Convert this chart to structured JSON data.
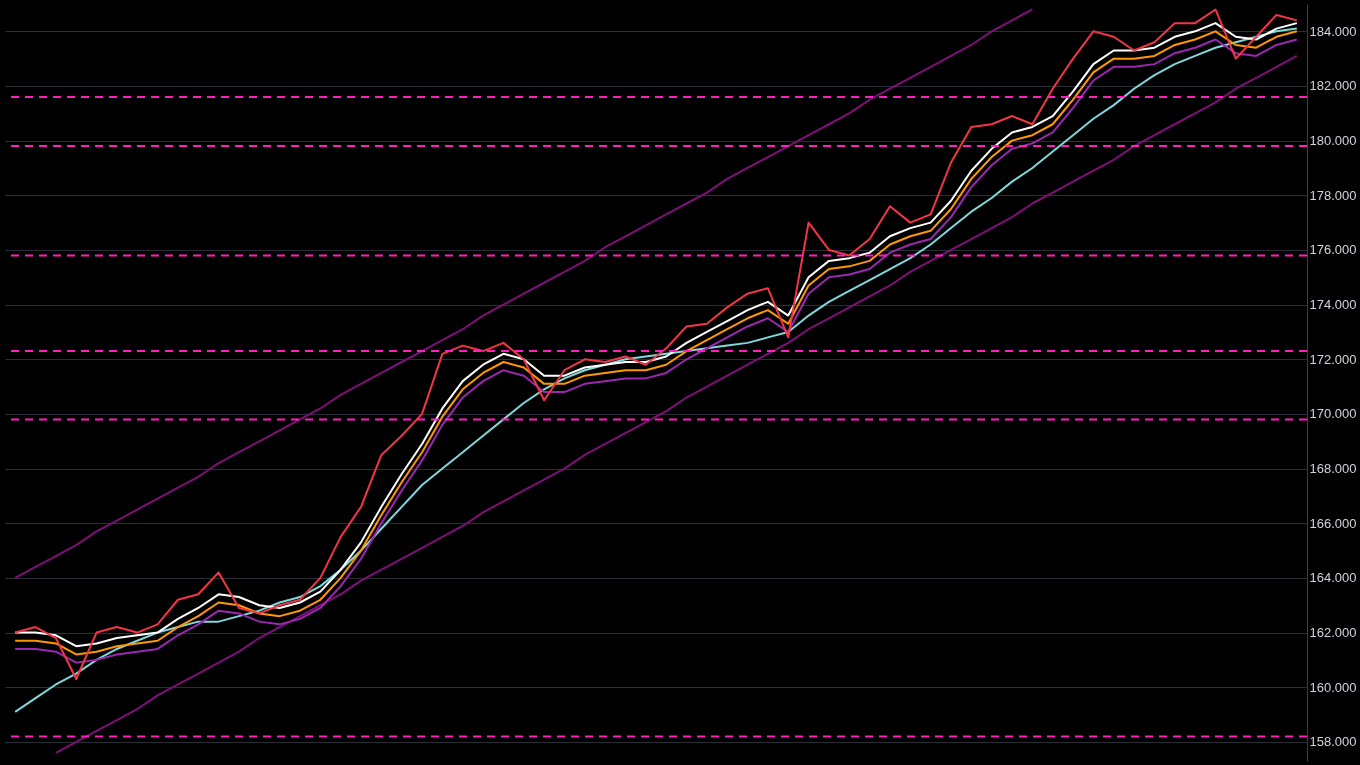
{
  "chart_data": {
    "type": "line",
    "categories": [
      null,
      null,
      null,
      null,
      null,
      null,
      null,
      null,
      null,
      null,
      null,
      null,
      null,
      null,
      null,
      null,
      null,
      null,
      null,
      null,
      null,
      null,
      null,
      null,
      null,
      null,
      null,
      null,
      null,
      null,
      null,
      null,
      null,
      null,
      null,
      null,
      null,
      null,
      null,
      null,
      null,
      null,
      null,
      null,
      null,
      null,
      null,
      null,
      null,
      null,
      null,
      null,
      null,
      null,
      null,
      null,
      null,
      null,
      null,
      null,
      null,
      null,
      null,
      null
    ],
    "series": [
      {
        "color": "#800f7a",
        "values": [
          164.0,
          164.4,
          164.8,
          165.2,
          165.7,
          166.1,
          166.5,
          166.9,
          167.3,
          167.7,
          168.2,
          168.6,
          169.0,
          169.4,
          169.8,
          170.2,
          170.7,
          171.1,
          171.5,
          171.9,
          172.3,
          172.7,
          173.1,
          173.6,
          174.0,
          174.4,
          174.8,
          175.2,
          175.6,
          176.1,
          176.5,
          176.9,
          177.3,
          177.7,
          178.1,
          178.6,
          179.0,
          179.4,
          179.8,
          180.2,
          180.6,
          181.0,
          181.5,
          181.9,
          182.3,
          182.7,
          183.1,
          183.5,
          184.0,
          184.4,
          184.8,
          null,
          null,
          null,
          null,
          null,
          null,
          null,
          null,
          null,
          null,
          null,
          null,
          null
        ]
      },
      {
        "color": "#800f7a",
        "values": [
          null,
          null,
          157.6,
          158.0,
          158.4,
          158.8,
          159.2,
          159.7,
          160.1,
          160.5,
          160.9,
          161.3,
          161.8,
          162.2,
          162.6,
          163.0,
          163.4,
          163.9,
          164.3,
          164.7,
          165.1,
          165.5,
          165.9,
          166.4,
          166.8,
          167.2,
          167.6,
          168.0,
          168.5,
          168.9,
          169.3,
          169.7,
          170.1,
          170.6,
          171.0,
          171.4,
          171.8,
          172.2,
          172.6,
          173.1,
          173.5,
          173.9,
          174.3,
          174.7,
          175.2,
          175.6,
          176.0,
          176.4,
          176.8,
          177.2,
          177.7,
          178.1,
          178.5,
          178.9,
          179.3,
          179.8,
          180.2,
          180.6,
          181.0,
          181.4,
          181.9,
          182.3,
          182.7,
          183.1
        ]
      },
      {
        "color": "#7fd8dc",
        "values": [
          159.1,
          159.6,
          160.1,
          160.5,
          161.0,
          161.4,
          161.7,
          162.0,
          162.2,
          162.4,
          162.4,
          162.6,
          162.8,
          163.1,
          163.3,
          163.7,
          164.3,
          165.0,
          165.8,
          166.6,
          167.4,
          168.0,
          168.6,
          169.2,
          169.8,
          170.4,
          170.9,
          171.3,
          171.6,
          171.8,
          172.0,
          172.1,
          172.2,
          172.3,
          172.4,
          172.5,
          172.6,
          172.8,
          173.0,
          173.6,
          174.1,
          174.5,
          174.9,
          175.3,
          175.7,
          176.2,
          176.8,
          177.4,
          177.9,
          178.5,
          179.0,
          179.6,
          180.2,
          180.8,
          181.3,
          181.9,
          182.4,
          182.8,
          183.1,
          183.4,
          183.6,
          183.8,
          184.0,
          184.1
        ]
      },
      {
        "color": "#9c27b0",
        "values": [
          161.4,
          161.4,
          161.3,
          160.9,
          161.0,
          161.2,
          161.3,
          161.4,
          161.9,
          162.3,
          162.8,
          162.7,
          162.4,
          162.3,
          162.5,
          162.9,
          163.7,
          164.7,
          166.0,
          167.2,
          168.3,
          169.6,
          170.6,
          171.2,
          171.6,
          171.4,
          170.8,
          170.8,
          171.1,
          171.2,
          171.3,
          171.3,
          171.5,
          172.0,
          172.4,
          172.8,
          173.2,
          173.5,
          173.0,
          174.4,
          175.0,
          175.1,
          175.3,
          175.9,
          176.2,
          176.4,
          177.2,
          178.3,
          179.1,
          179.7,
          179.9,
          180.3,
          181.2,
          182.2,
          182.7,
          182.7,
          182.8,
          183.2,
          183.4,
          183.7,
          183.2,
          183.1,
          183.5,
          183.7
        ]
      },
      {
        "color": "#ff9800",
        "values": [
          161.7,
          161.7,
          161.6,
          161.2,
          161.3,
          161.5,
          161.6,
          161.7,
          162.2,
          162.6,
          163.1,
          163.0,
          162.7,
          162.6,
          162.8,
          163.2,
          164.0,
          165.0,
          166.3,
          167.5,
          168.6,
          169.9,
          170.9,
          171.5,
          171.9,
          171.7,
          171.1,
          171.1,
          171.4,
          171.5,
          171.6,
          171.6,
          171.8,
          172.3,
          172.7,
          173.1,
          173.5,
          173.8,
          173.3,
          174.7,
          175.3,
          175.4,
          175.6,
          176.2,
          176.5,
          176.7,
          177.5,
          178.6,
          179.4,
          180.0,
          180.2,
          180.6,
          181.5,
          182.5,
          183.0,
          183.0,
          183.1,
          183.5,
          183.7,
          184.0,
          183.5,
          183.4,
          183.8,
          184.0
        ]
      },
      {
        "color": "#ffffff",
        "values": [
          162.0,
          162.0,
          161.9,
          161.5,
          161.6,
          161.8,
          161.9,
          162.0,
          162.5,
          162.9,
          163.4,
          163.3,
          163.0,
          162.9,
          163.1,
          163.5,
          164.3,
          165.3,
          166.6,
          167.8,
          168.9,
          170.2,
          171.2,
          171.8,
          172.2,
          172.0,
          171.4,
          171.4,
          171.7,
          171.8,
          171.9,
          171.9,
          172.1,
          172.6,
          173.0,
          173.4,
          173.8,
          174.1,
          173.6,
          175.0,
          175.6,
          175.7,
          175.9,
          176.5,
          176.8,
          177.0,
          177.8,
          178.9,
          179.7,
          180.3,
          180.5,
          180.9,
          181.8,
          182.8,
          183.3,
          183.3,
          183.4,
          183.8,
          184.0,
          184.3,
          183.8,
          183.7,
          184.1,
          184.3
        ]
      },
      {
        "color": "#f23645",
        "values": [
          162.0,
          162.2,
          161.8,
          160.3,
          162.0,
          162.2,
          162.0,
          162.3,
          163.2,
          163.4,
          164.2,
          162.9,
          162.7,
          163.0,
          163.2,
          164.0,
          165.5,
          166.6,
          168.5,
          169.2,
          170.0,
          172.2,
          172.5,
          172.3,
          172.6,
          172.0,
          170.5,
          171.6,
          172.0,
          171.9,
          172.1,
          171.8,
          172.4,
          173.2,
          173.3,
          173.9,
          174.4,
          174.6,
          172.8,
          177.0,
          176.0,
          175.8,
          176.4,
          177.6,
          177.0,
          177.3,
          179.2,
          180.5,
          180.6,
          180.9,
          180.6,
          181.9,
          183.0,
          184.0,
          183.8,
          183.3,
          183.6,
          184.3,
          184.3,
          184.8,
          183.0,
          183.8,
          184.6,
          184.4
        ]
      }
    ],
    "ref_lines": [
      {
        "axis": "y",
        "value": 181.6,
        "color": "#ff1fbf",
        "line_style": "dashed"
      },
      {
        "axis": "y",
        "value": 179.8,
        "color": "#ff1fbf",
        "line_style": "dashed"
      },
      {
        "axis": "y",
        "value": 175.8,
        "color": "#ff1fbf",
        "line_style": "dashed"
      },
      {
        "axis": "y",
        "value": 172.3,
        "color": "#ff1fbf",
        "line_style": "dashed"
      },
      {
        "axis": "y",
        "value": 169.8,
        "color": "#ff1fbf",
        "line_style": "dashed"
      },
      {
        "axis": "y",
        "value": 158.2,
        "color": "#ff1fbf",
        "line_style": "dashed"
      }
    ],
    "ylim": [
      157.3,
      185.0
    ],
    "yticks": [
      {
        "value": 158,
        "label": "158.000"
      },
      {
        "value": 160,
        "label": "160.000"
      },
      {
        "value": 162,
        "label": "162.000"
      },
      {
        "value": 164,
        "label": "164.000"
      },
      {
        "value": 166,
        "label": "166.000"
      },
      {
        "value": 168,
        "label": "168.000"
      },
      {
        "value": 170,
        "label": "170.000"
      },
      {
        "value": 172,
        "label": "172.000"
      },
      {
        "value": 174,
        "label": "174.000"
      },
      {
        "value": 176,
        "label": "176.000"
      },
      {
        "value": 178,
        "label": "178.000"
      },
      {
        "value": 180,
        "label": "180.000"
      },
      {
        "value": 182,
        "label": "182.000"
      },
      {
        "value": 184,
        "label": "184.000"
      }
    ],
    "tick_labels": "y",
    "grid": "y",
    "line_style": "solid"
  }
}
